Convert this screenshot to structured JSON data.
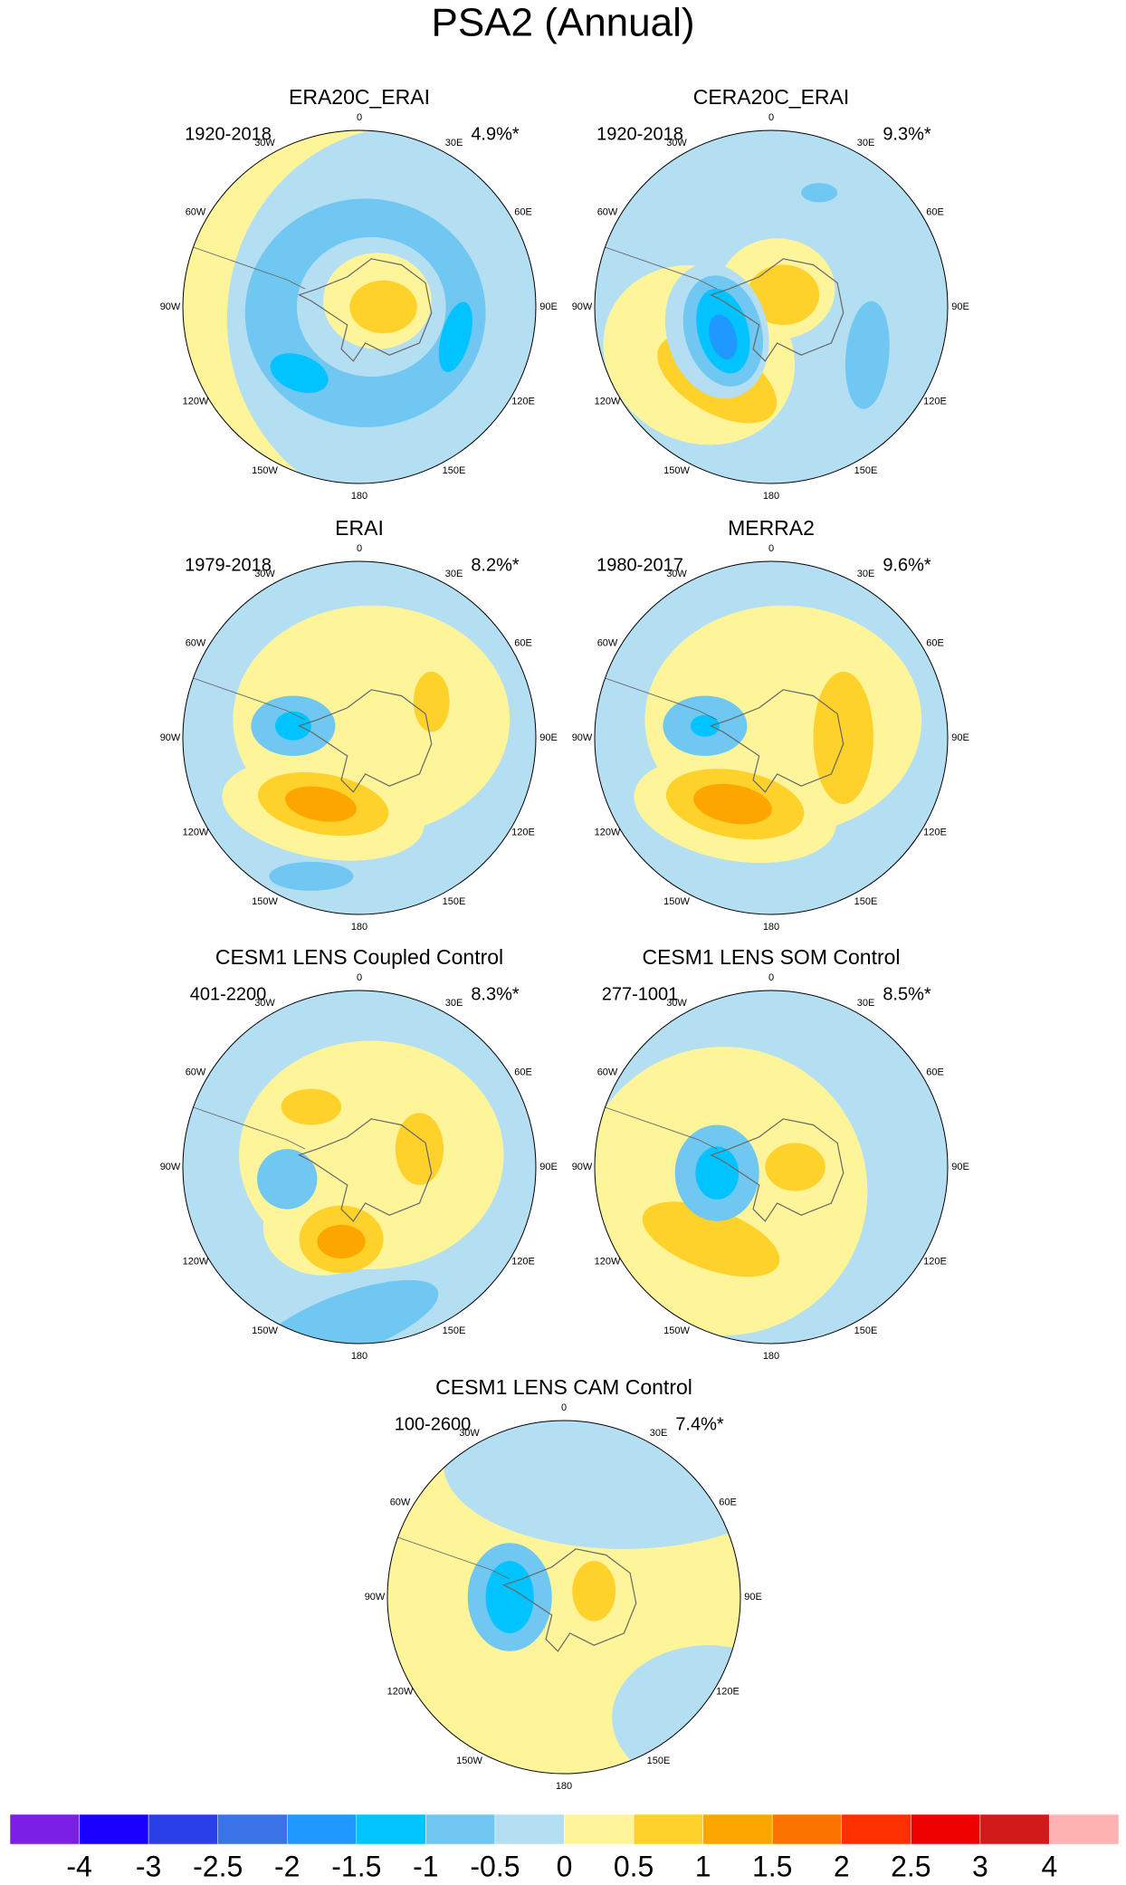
{
  "title": "PSA2 (Annual)",
  "panels": [
    {
      "title": "ERA20C_ERAI",
      "period": "1920-2018",
      "variance": "4.9%*"
    },
    {
      "title": "CERA20C_ERAI",
      "period": "1920-2018",
      "variance": "9.3%*"
    },
    {
      "title": "ERAI",
      "period": "1979-2018",
      "variance": "8.2%*"
    },
    {
      "title": "MERRA2",
      "period": "1980-2017",
      "variance": "9.6%*"
    },
    {
      "title": "CESM1 LENS Coupled Control",
      "period": "401-2200",
      "variance": "8.3%*"
    },
    {
      "title": "CESM1 LENS SOM Control",
      "period": "277-1001",
      "variance": "8.5%*"
    },
    {
      "title": "CESM1 LENS CAM Control",
      "period": "100-2600",
      "variance": "7.4%*"
    }
  ],
  "longitude_labels": [
    "0",
    "30E",
    "60E",
    "90E",
    "120E",
    "150E",
    "180",
    "150W",
    "120W",
    "90W",
    "60W",
    "30W"
  ],
  "colorbar": {
    "colors": [
      "#7c1fe6",
      "#1a00ff",
      "#2a3fe8",
      "#3a72e8",
      "#1f98ff",
      "#00c3ff",
      "#70c7f1",
      "#b4dff2",
      "#fef59b",
      "#fed22a",
      "#fea600",
      "#fd7300",
      "#fd3000",
      "#ee0000",
      "#d31a1a",
      "#ffb2b2"
    ],
    "labels": [
      -4,
      -3,
      -2.5,
      -2,
      -1.5,
      -1,
      -0.5,
      0,
      0.5,
      1,
      1.5,
      2,
      2.5,
      3,
      4
    ]
  }
}
